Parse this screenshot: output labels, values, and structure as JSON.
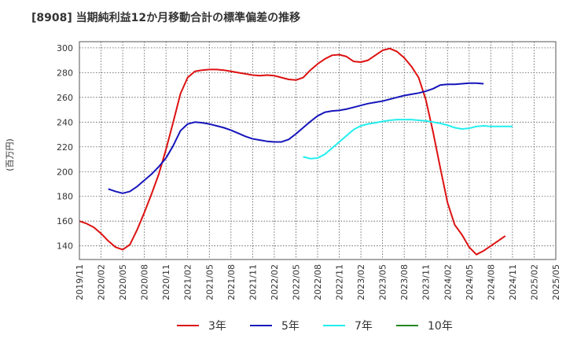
{
  "chart_data": {
    "type": "line",
    "title": "[8908]  当期純利益12か月移動合計の標準偏差の推移",
    "ylabel": "(百万円)",
    "xlabel": "",
    "ylim": [
      129,
      305
    ],
    "yticks": [
      140,
      160,
      180,
      200,
      220,
      240,
      260,
      280,
      300
    ],
    "x_start": "2019/11",
    "x_months": 67,
    "xtick_labels": [
      "2019/11",
      "2020/02",
      "2020/05",
      "2020/08",
      "2020/11",
      "2021/02",
      "2021/05",
      "2021/08",
      "2021/11",
      "2022/02",
      "2022/05",
      "2022/08",
      "2022/11",
      "2023/02",
      "2023/05",
      "2023/08",
      "2023/11",
      "2024/02",
      "2024/05",
      "2024/08",
      "2024/11",
      "2025/02",
      "2025/05"
    ],
    "grid": true,
    "legend_position": "bottom",
    "series": [
      {
        "name": "3年",
        "color": "#dd1111",
        "start_index": 0,
        "values": [
          160,
          158,
          155,
          150,
          144,
          139,
          137,
          141,
          153,
          167,
          182,
          198,
          218,
          240,
          263,
          276,
          281,
          282,
          282.5,
          282.5,
          282,
          281,
          280,
          279,
          278,
          277.5,
          278,
          277.5,
          276,
          274.5,
          274,
          276,
          282,
          287,
          291,
          294,
          294.5,
          293,
          289,
          288.5,
          290,
          294,
          298,
          299.5,
          297,
          292,
          285,
          276,
          258,
          232,
          203,
          175,
          157,
          149,
          139,
          133,
          136,
          140,
          144,
          148
        ]
      },
      {
        "name": "5年",
        "color": "#1515bb",
        "start_index": 4,
        "values": [
          186,
          184,
          182.5,
          184,
          188,
          193,
          198,
          204,
          211,
          221,
          233,
          238.5,
          240,
          239.5,
          238.5,
          237,
          235.5,
          233.5,
          231,
          228.5,
          226.5,
          225.5,
          224.5,
          224,
          224,
          226,
          230.5,
          235.5,
          240.5,
          245,
          248,
          249,
          249.5,
          250.5,
          252,
          253.5,
          255,
          256,
          257,
          258.5,
          260,
          261.5,
          262.5,
          263.5,
          265,
          267,
          270,
          270.5,
          270.5,
          271,
          271.5,
          271.5,
          271
        ]
      },
      {
        "name": "7年",
        "color": "#22eeee",
        "start_index": 31,
        "values": [
          212,
          210.5,
          211,
          214,
          219,
          224,
          229,
          234,
          237,
          238.5,
          239.5,
          240.5,
          241.5,
          242,
          242,
          242,
          241.5,
          241,
          240,
          239,
          237.5,
          235.5,
          234.5,
          235,
          236.5,
          237,
          236.5,
          236.5,
          236.5,
          236.5
        ]
      },
      {
        "name": "10年",
        "color": "#228822",
        "start_index": 0,
        "values": []
      }
    ]
  }
}
